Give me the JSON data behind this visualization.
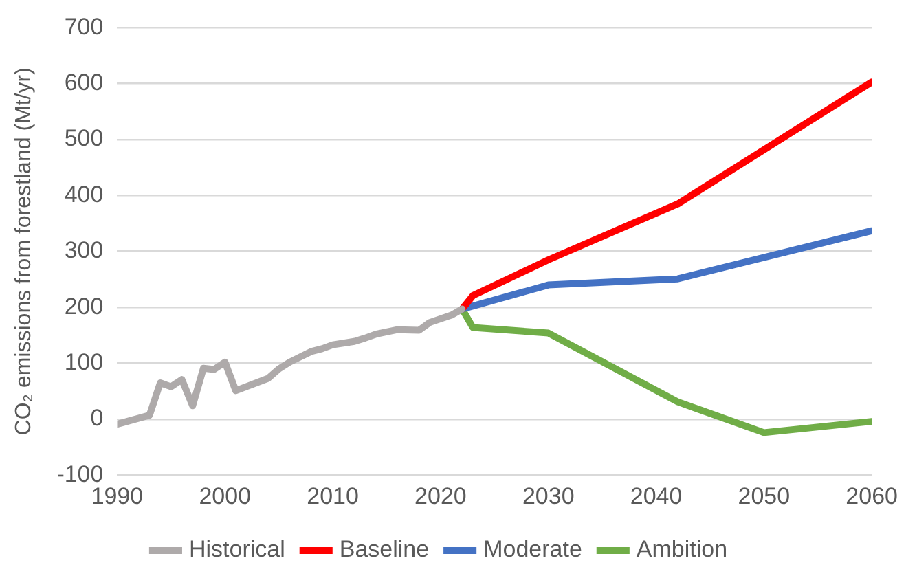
{
  "chart_data": {
    "type": "line",
    "ylabel": "CO₂ emissions from forestland (Mt/yr)",
    "xlim": [
      1990,
      2060
    ],
    "xticks": [
      1990,
      2000,
      2010,
      2020,
      2030,
      2040,
      2050,
      2060
    ],
    "ylim": [
      -100,
      700
    ],
    "yticks": [
      -100,
      0,
      100,
      200,
      300,
      400,
      500,
      600,
      700
    ],
    "grid": "y",
    "legend": "bottom",
    "marker": "none",
    "line_style": "solid",
    "series": [
      {
        "name": "Historical",
        "color": "#aeaaaa",
        "x": [
          1990,
          1993,
          1994,
          1995,
          1996,
          1997,
          1998,
          1999,
          2000,
          2001,
          2004,
          2005,
          2006,
          2008,
          2009,
          2010,
          2012,
          2013,
          2014,
          2016,
          2018,
          2019,
          2021,
          2022
        ],
        "values": [
          -9,
          7,
          65,
          58,
          71,
          24,
          91,
          89,
          102,
          51,
          73,
          90,
          102,
          121,
          126,
          133,
          139,
          145,
          152,
          160,
          159,
          173,
          186,
          197
        ]
      },
      {
        "name": "Baseline",
        "color": "#ff0000",
        "x": [
          2022,
          2023,
          2030,
          2042,
          2060
        ],
        "values": [
          197,
          221,
          285,
          385,
          603
        ]
      },
      {
        "name": "Moderate",
        "color": "#4472c4",
        "x": [
          2022,
          2030,
          2042,
          2060
        ],
        "values": [
          197,
          240,
          251,
          337
        ]
      },
      {
        "name": "Ambition",
        "color": "#70ad47",
        "x": [
          2022,
          2023,
          2030,
          2042,
          2050,
          2060
        ],
        "values": [
          197,
          164,
          154,
          31,
          -24,
          -4
        ]
      }
    ]
  }
}
